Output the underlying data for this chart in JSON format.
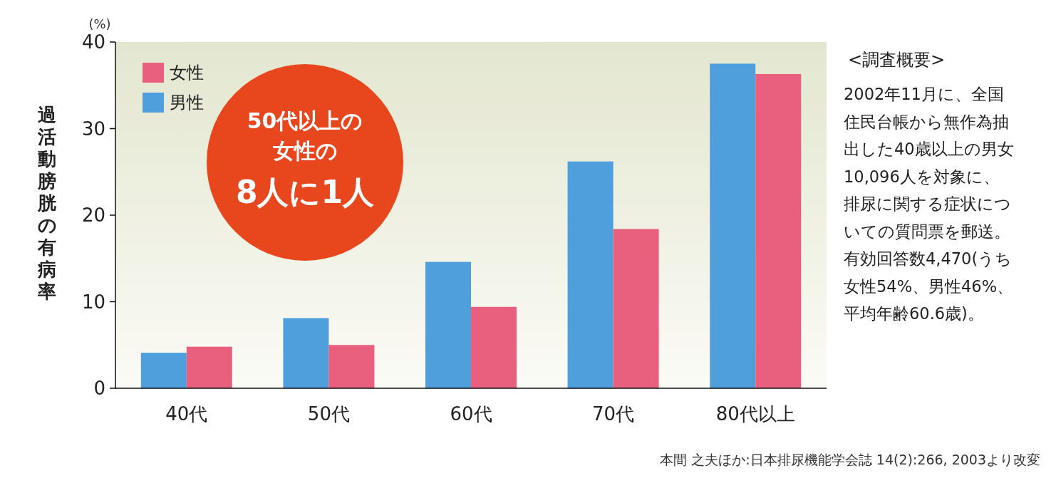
{
  "chart_data": {
    "type": "bar",
    "ylabel": "過活動膀胱の有病率",
    "categories": [
      "40代",
      "50代",
      "60代",
      "70代",
      "80代以上"
    ],
    "series": [
      {
        "name": "男性",
        "color": "#4f9fdc",
        "values": [
          4.1,
          8.1,
          14.6,
          26.2,
          37.5
        ]
      },
      {
        "name": "女性",
        "color": "#e9607f",
        "values": [
          4.8,
          5.0,
          9.4,
          18.4,
          36.3
        ]
      }
    ],
    "ylim": [
      0,
      40
    ],
    "yticks": [
      0,
      10,
      20,
      30,
      40
    ],
    "grid": false,
    "legend": "top left",
    "annotations": [
      "(%)",
      "50代以上の女性の",
      "8人に1人",
      "<調査概要>",
      "2002年11月に、全国住民台帳から無作為抽出した40歳以上の男女10,096人を対象に、排尿に関する症状についての質問票を郵送。有効回答数4,470(うち女性54%、男性46%、平均年齢60.6歳)。",
      "本間 之夫ほか:日本排尿機能学会誌 14(2):266, 2003より改変"
    ]
  }
}
